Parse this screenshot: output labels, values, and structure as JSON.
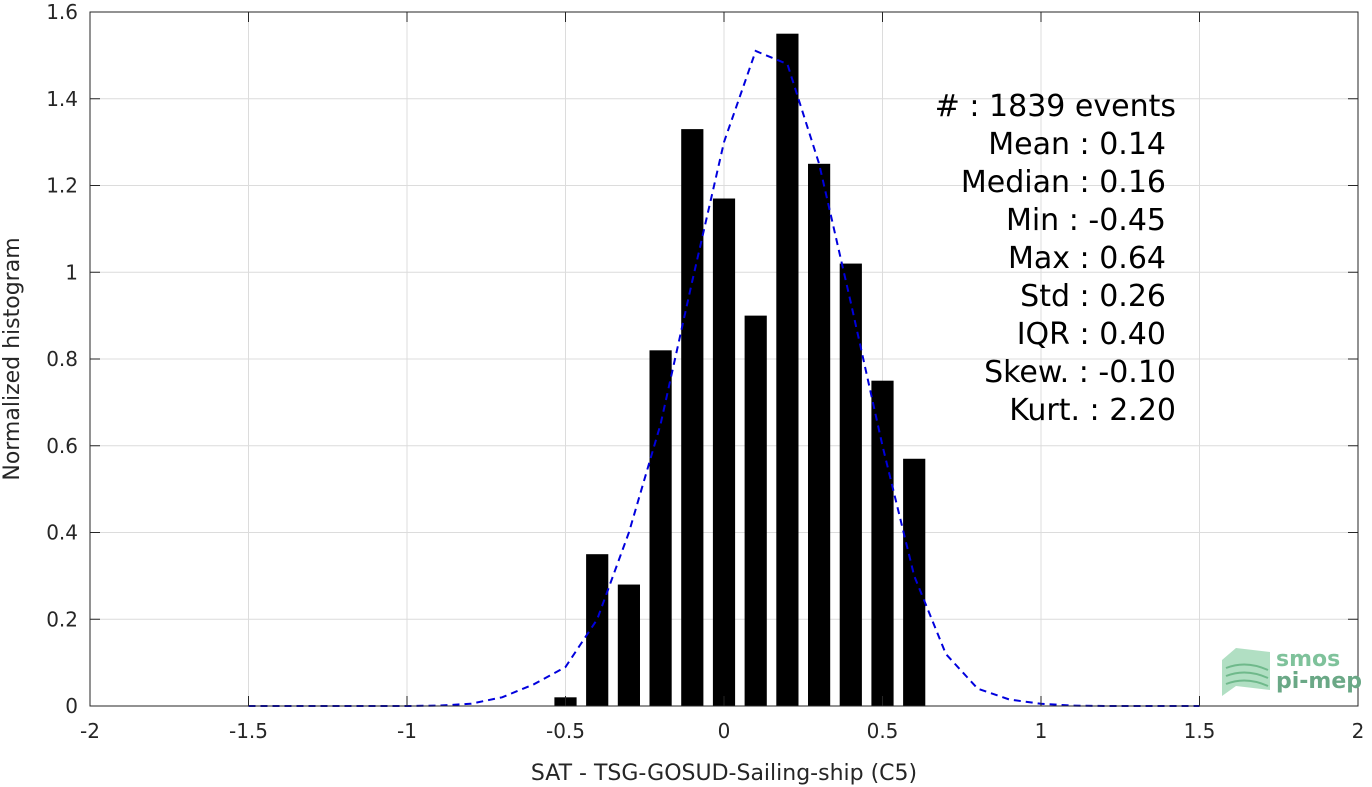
{
  "chart_data": {
    "type": "bar",
    "xlabel": "SAT - TSG-GOSUD-Sailing-ship (C5)",
    "ylabel": "Normalized histogram",
    "xlim": [
      -2,
      2
    ],
    "ylim": [
      0,
      1.6
    ],
    "grid": true,
    "x_ticks": [
      -2,
      -1.5,
      -1,
      -0.5,
      0,
      0.5,
      1,
      1.5,
      2
    ],
    "x_tick_labels": [
      "-2",
      "-1.5",
      "-1",
      "-0.5",
      "0",
      "0.5",
      "1",
      "1.5",
      "2"
    ],
    "y_ticks": [
      0,
      0.2,
      0.4,
      0.6,
      0.8,
      1.0,
      1.2,
      1.4,
      1.6
    ],
    "y_tick_labels": [
      "0",
      "0.2",
      "0.4",
      "0.6",
      "0.8",
      "1",
      "1.2",
      "1.4",
      "1.6"
    ],
    "bar_width": 0.07,
    "bar_color": "#000000",
    "bars": [
      {
        "x": -0.5,
        "y": 0.02
      },
      {
        "x": -0.4,
        "y": 0.35
      },
      {
        "x": -0.3,
        "y": 0.28
      },
      {
        "x": -0.2,
        "y": 0.82
      },
      {
        "x": -0.1,
        "y": 1.33
      },
      {
        "x": 0.0,
        "y": 1.17
      },
      {
        "x": 0.1,
        "y": 0.9
      },
      {
        "x": 0.2,
        "y": 1.55
      },
      {
        "x": 0.3,
        "y": 1.25
      },
      {
        "x": 0.4,
        "y": 1.02
      },
      {
        "x": 0.5,
        "y": 0.75
      },
      {
        "x": 0.6,
        "y": 0.57
      }
    ],
    "fit_curve": {
      "style": "dashed",
      "color": "#0000dd",
      "x": [
        -1.5,
        -1.4,
        -1.3,
        -1.2,
        -1.1,
        -1.0,
        -0.9,
        -0.8,
        -0.7,
        -0.6,
        -0.5,
        -0.4,
        -0.3,
        -0.2,
        -0.1,
        0.0,
        0.1,
        0.2,
        0.3,
        0.4,
        0.5,
        0.6,
        0.7,
        0.8,
        0.9,
        1.0,
        1.1,
        1.2,
        1.3,
        1.4,
        1.5
      ],
      "y": [
        0.0,
        0.0,
        0.0,
        0.0,
        0.0,
        0.0,
        0.001,
        0.005,
        0.02,
        0.05,
        0.09,
        0.2,
        0.4,
        0.65,
        0.98,
        1.3,
        1.51,
        1.48,
        1.25,
        0.93,
        0.6,
        0.3,
        0.12,
        0.04,
        0.015,
        0.005,
        0.001,
        0.0,
        0.0,
        0.0,
        0.0
      ]
    },
    "stats": [
      {
        "label": "#  : 1839 events"
      },
      {
        "label": "Mean : 0.14"
      },
      {
        "label": "Median : 0.16"
      },
      {
        "label": "Min : -0.45"
      },
      {
        "label": "Max : 0.64"
      },
      {
        "label": "Std : 0.26"
      },
      {
        "label": "IQR : 0.40"
      },
      {
        "label": "Skew. : -0.10"
      },
      {
        "label": "Kurt. : 2.20"
      }
    ]
  },
  "logo": {
    "line1": "smos",
    "line2": "pi-mep",
    "color": "#7fc29b"
  }
}
